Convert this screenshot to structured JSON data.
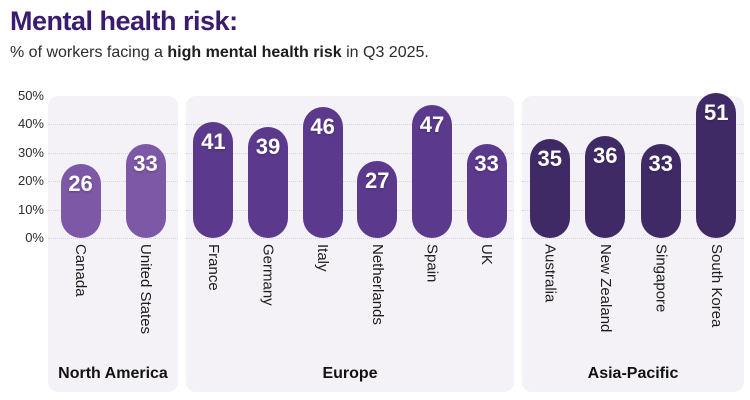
{
  "header": {
    "title": "Mental health risk:",
    "subtitle_prefix": "% of workers facing a ",
    "subtitle_bold": "high mental health risk",
    "subtitle_suffix": " in Q3 2025."
  },
  "chart_data": {
    "type": "bar",
    "title": "Mental health risk:",
    "subtitle": "% of workers facing a high mental health risk in Q3 2025.",
    "unit": "%",
    "ylim": [
      0,
      50
    ],
    "yticks": [
      "0%",
      "10%",
      "20%",
      "30%",
      "40%",
      "50%"
    ],
    "grid": "horizontal-dotted",
    "legend": "none",
    "groups": [
      {
        "label": "North America",
        "color": "#7d58a6",
        "categories": [
          "Canada",
          "United States"
        ],
        "values": [
          26,
          33
        ]
      },
      {
        "label": "Europe",
        "color": "#5b398d",
        "categories": [
          "France",
          "Germany",
          "Italy",
          "Netherlands",
          "Spain",
          "UK"
        ],
        "values": [
          41,
          39,
          46,
          27,
          47,
          33
        ]
      },
      {
        "label": "Asia-Pacific",
        "color": "#3f2a66",
        "categories": [
          "Australia",
          "New Zealand",
          "Singapore",
          "South Korea"
        ],
        "values": [
          35,
          36,
          33,
          51
        ]
      }
    ],
    "colors": {
      "title": "#3a1b6f",
      "panel_background": "#f4f2f6",
      "value_label": "#ffffff"
    }
  }
}
